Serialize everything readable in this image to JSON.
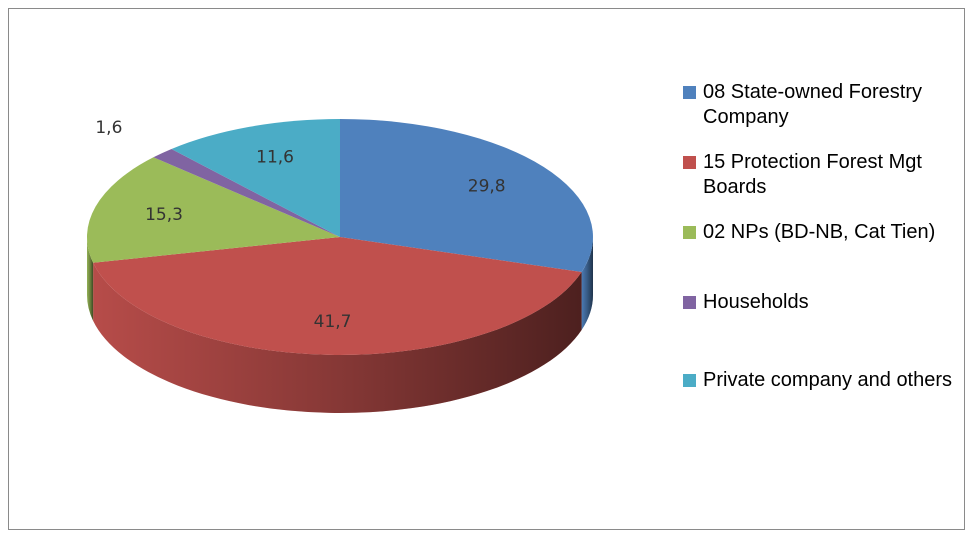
{
  "chart_data": {
    "type": "pie",
    "categories": [
      "08 State-owned Forestry Company",
      "15 Protection Forest Mgt Boards",
      "02 NPs (BD-NB, Cat Tien)",
      "Households",
      "Private company and others"
    ],
    "values": [
      29.8,
      41.7,
      15.3,
      1.6,
      11.6
    ],
    "value_labels": [
      "29,8",
      "41,7",
      "15,3",
      "1,6",
      "11,6"
    ],
    "colors": [
      "#4f81bd",
      "#c0504d",
      "#9bbb59",
      "#8064a2",
      "#4bacc6"
    ],
    "legend": "right"
  }
}
